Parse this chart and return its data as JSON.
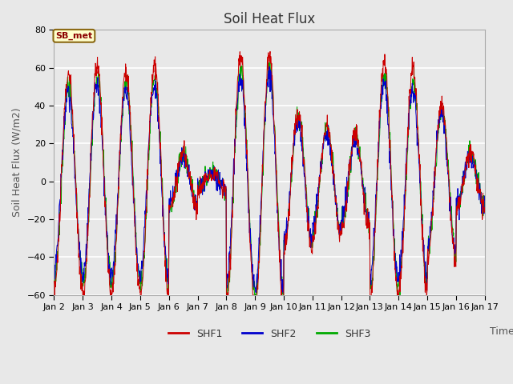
{
  "title": "Soil Heat Flux",
  "ylabel": "Soil Heat Flux (W/m2)",
  "xlabel": "Time",
  "ylim": [
    -60,
    80
  ],
  "annotation": "SB_met",
  "series_names": [
    "SHF1",
    "SHF2",
    "SHF3"
  ],
  "series_colors": [
    "#cc0000",
    "#0000cc",
    "#00aa00"
  ],
  "background_color": "#e8e8e8",
  "plot_bg_color": "#e8e8e8",
  "grid_color": "white",
  "n_days": 15,
  "points_per_day": 96,
  "tick_labels": [
    "Jan 2",
    "Jan 3",
    "Jan 4",
    "Jan 5",
    "Jan 6",
    "Jan 7",
    "Jan 8",
    "Jan 9",
    "Jan 10",
    "Jan 11",
    "Jan 12",
    "Jan 13",
    "Jan 14",
    "Jan 15",
    "Jan 16",
    "Jan 17"
  ],
  "title_fontsize": 12,
  "axis_label_fontsize": 9,
  "tick_fontsize": 8,
  "day_amps_shf1": [
    1.35,
    1.45,
    1.4,
    1.45,
    0.35,
    0.12,
    1.55,
    1.6,
    0.88,
    0.7,
    0.6,
    1.5,
    1.4,
    1.0,
    0.35
  ],
  "day_amps_shf2": [
    1.1,
    1.2,
    1.15,
    1.2,
    0.3,
    0.1,
    1.3,
    1.35,
    0.75,
    0.6,
    0.5,
    1.25,
    1.15,
    0.85,
    0.3
  ],
  "day_amps_shf3": [
    1.2,
    1.3,
    1.25,
    1.3,
    0.33,
    0.11,
    1.4,
    1.45,
    0.8,
    0.65,
    0.55,
    1.35,
    1.25,
    0.9,
    0.32
  ]
}
